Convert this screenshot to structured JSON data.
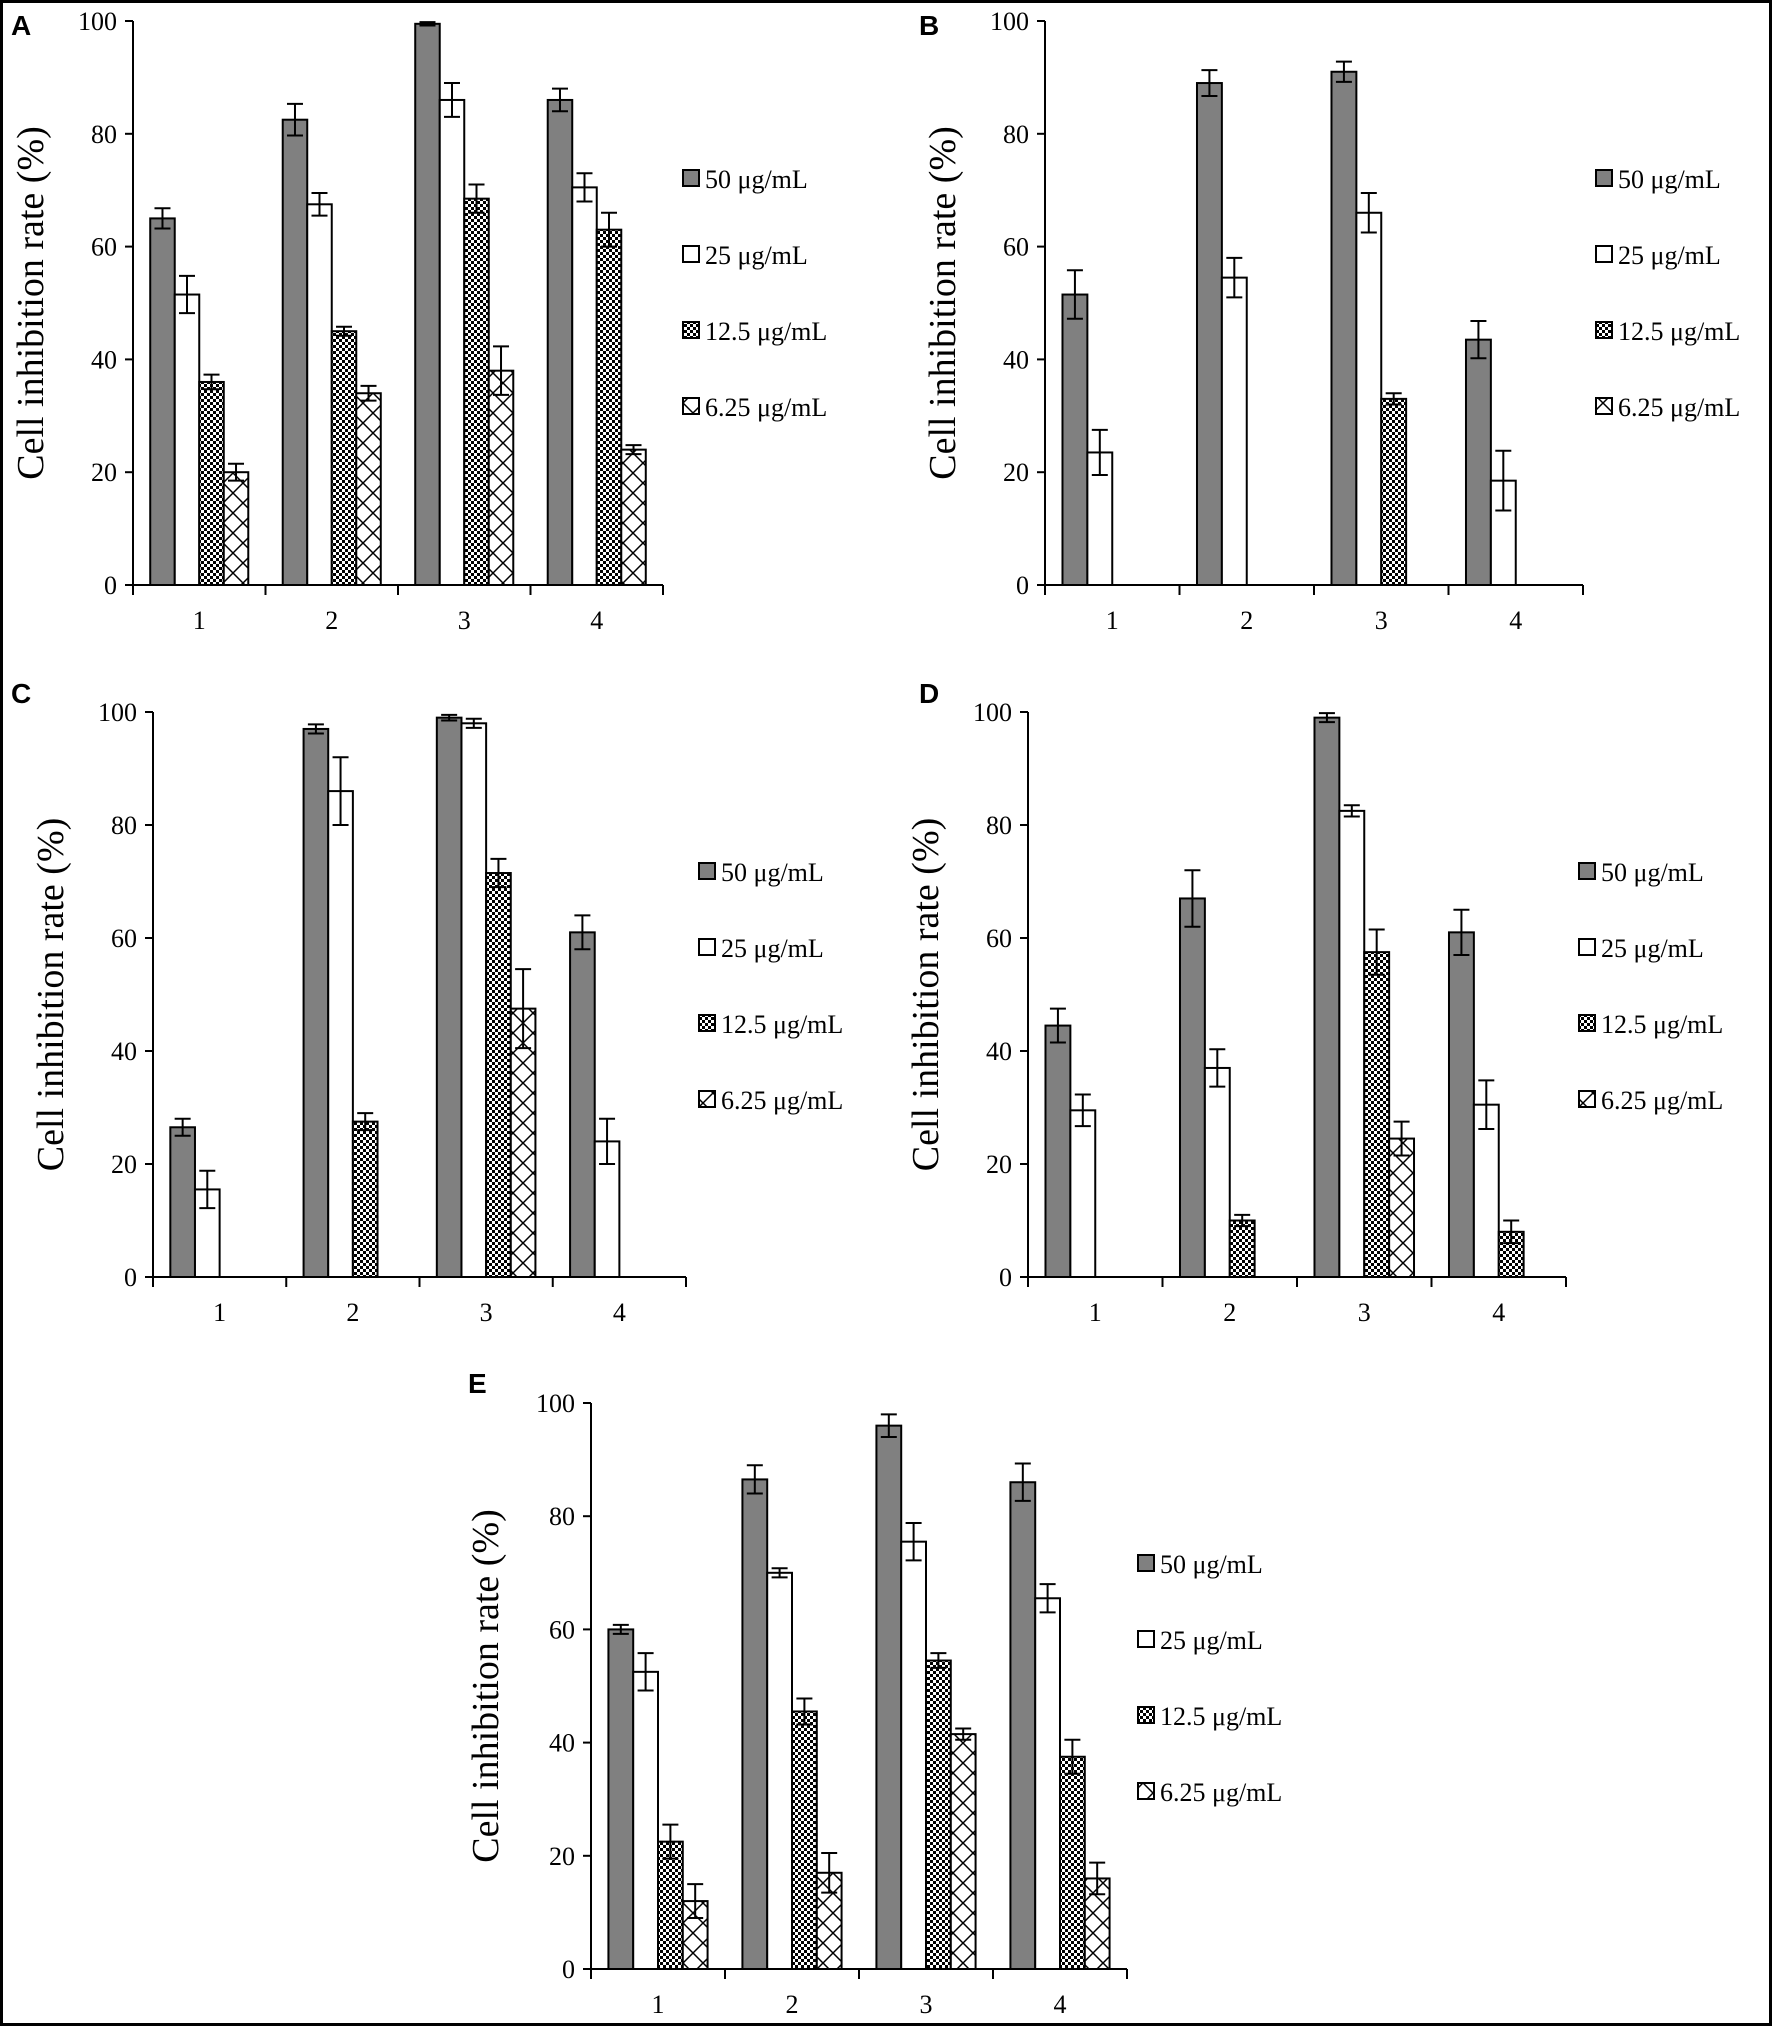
{
  "figure": {
    "legend_entries": [
      "50 μg/mL",
      "25 μg/mL",
      "12.5 μg/mL",
      "6.25 μg/mL"
    ],
    "colors": {
      "series_50": "#808080",
      "series_25": "#ffffff",
      "series_12_5": "#ffffff",
      "series_6_25": "#ffffff",
      "outline": "#000000"
    }
  },
  "chart_data": [
    {
      "type": "bar",
      "panel": "A",
      "ylabel": "Cell inhibition rate (%)",
      "xlabel": "",
      "ylim": [
        0,
        100
      ],
      "yticks": [
        0,
        20,
        40,
        60,
        80,
        100
      ],
      "categories": [
        "1",
        "2",
        "3",
        "4"
      ],
      "series": [
        {
          "name": "50 μg/mL",
          "pattern": "solid-gray",
          "values": [
            65,
            82.5,
            99.5,
            86
          ],
          "errors": [
            1.8,
            2.8,
            0.3,
            2.0
          ]
        },
        {
          "name": "25 μg/mL",
          "pattern": "white",
          "values": [
            51.5,
            67.5,
            86,
            70.5
          ],
          "errors": [
            3.3,
            2.0,
            3.0,
            2.5
          ]
        },
        {
          "name": "12.5 μg/mL",
          "pattern": "checker",
          "values": [
            36,
            45,
            68.5,
            63
          ],
          "errors": [
            1.3,
            0.8,
            2.5,
            3.0
          ]
        },
        {
          "name": "6.25 μg/mL",
          "pattern": "crosshatch",
          "values": [
            20,
            34,
            38,
            24
          ],
          "errors": [
            1.5,
            1.3,
            4.3,
            0.8
          ]
        }
      ]
    },
    {
      "type": "bar",
      "panel": "B",
      "ylabel": "Cell inhibition rate (%)",
      "xlabel": "",
      "ylim": [
        0,
        100
      ],
      "yticks": [
        0,
        20,
        40,
        60,
        80,
        100
      ],
      "categories": [
        "1",
        "2",
        "3",
        "4"
      ],
      "series": [
        {
          "name": "50 μg/mL",
          "pattern": "solid-gray",
          "values": [
            51.5,
            89,
            91,
            43.5
          ],
          "errors": [
            4.3,
            2.3,
            1.8,
            3.3
          ]
        },
        {
          "name": "25 μg/mL",
          "pattern": "white",
          "values": [
            23.5,
            54.5,
            66,
            18.5
          ],
          "errors": [
            4.0,
            3.5,
            3.5,
            5.3
          ]
        },
        {
          "name": "12.5 μg/mL",
          "pattern": "checker",
          "values": [
            0,
            0,
            33,
            0
          ],
          "errors": [
            0,
            0,
            1.0,
            0
          ]
        },
        {
          "name": "6.25 μg/mL",
          "pattern": "crosshatch",
          "values": [
            0,
            0,
            0,
            0
          ],
          "errors": [
            0,
            0,
            0,
            0
          ]
        }
      ]
    },
    {
      "type": "bar",
      "panel": "C",
      "ylabel": "Cell inhibition rate (%)",
      "xlabel": "",
      "ylim": [
        0,
        100
      ],
      "yticks": [
        0,
        20,
        40,
        60,
        80,
        100
      ],
      "categories": [
        "1",
        "2",
        "3",
        "4"
      ],
      "series": [
        {
          "name": "50 μg/mL",
          "pattern": "solid-gray",
          "values": [
            26.5,
            97,
            99,
            61
          ],
          "errors": [
            1.5,
            0.8,
            0.5,
            3.0
          ]
        },
        {
          "name": "25 μg/mL",
          "pattern": "white",
          "values": [
            15.5,
            86,
            98,
            24
          ],
          "errors": [
            3.3,
            6.0,
            0.8,
            4.0
          ]
        },
        {
          "name": "12.5 μg/mL",
          "pattern": "checker",
          "values": [
            0,
            27.5,
            71.5,
            0
          ],
          "errors": [
            0,
            1.5,
            2.5,
            0
          ]
        },
        {
          "name": "6.25 μg/mL",
          "pattern": "crosshatch",
          "values": [
            0,
            0,
            47.5,
            0
          ],
          "errors": [
            0,
            0,
            7.0,
            0
          ]
        }
      ]
    },
    {
      "type": "bar",
      "panel": "D",
      "ylabel": "Cell inhibition rate (%)",
      "xlabel": "",
      "ylim": [
        0,
        100
      ],
      "yticks": [
        0,
        20,
        40,
        60,
        80,
        100
      ],
      "categories": [
        "1",
        "2",
        "3",
        "4"
      ],
      "series": [
        {
          "name": "50 μg/mL",
          "pattern": "solid-gray",
          "values": [
            44.5,
            67,
            99,
            61
          ],
          "errors": [
            3.0,
            5.0,
            0.8,
            4.0
          ]
        },
        {
          "name": "25 μg/mL",
          "pattern": "white",
          "values": [
            29.5,
            37,
            82.5,
            30.5
          ],
          "errors": [
            2.8,
            3.3,
            1.0,
            4.3
          ]
        },
        {
          "name": "12.5 μg/mL",
          "pattern": "checker",
          "values": [
            0,
            10,
            57.5,
            8
          ],
          "errors": [
            0,
            1.0,
            4.0,
            2.0
          ]
        },
        {
          "name": "6.25 μg/mL",
          "pattern": "crosshatch",
          "values": [
            0,
            0,
            24.5,
            0
          ],
          "errors": [
            0,
            0,
            3.0,
            0
          ]
        }
      ]
    },
    {
      "type": "bar",
      "panel": "E",
      "ylabel": "Cell inhibition rate (%)",
      "xlabel": "",
      "ylim": [
        0,
        100
      ],
      "yticks": [
        0,
        20,
        40,
        60,
        80,
        100
      ],
      "categories": [
        "1",
        "2",
        "3",
        "4"
      ],
      "series": [
        {
          "name": "50 μg/mL",
          "pattern": "solid-gray",
          "values": [
            60,
            86.5,
            96,
            86
          ],
          "errors": [
            0.8,
            2.5,
            2.0,
            3.3
          ]
        },
        {
          "name": "25 μg/mL",
          "pattern": "white",
          "values": [
            52.5,
            70,
            75.5,
            65.5
          ],
          "errors": [
            3.3,
            0.8,
            3.3,
            2.5
          ]
        },
        {
          "name": "12.5 μg/mL",
          "pattern": "checker",
          "values": [
            22.5,
            45.5,
            54.5,
            37.5
          ],
          "errors": [
            3.0,
            2.3,
            1.3,
            3.0
          ]
        },
        {
          "name": "6.25 μg/mL",
          "pattern": "crosshatch",
          "values": [
            12,
            17,
            41.5,
            16
          ],
          "errors": [
            3.0,
            3.5,
            1.0,
            2.8
          ]
        }
      ]
    }
  ]
}
